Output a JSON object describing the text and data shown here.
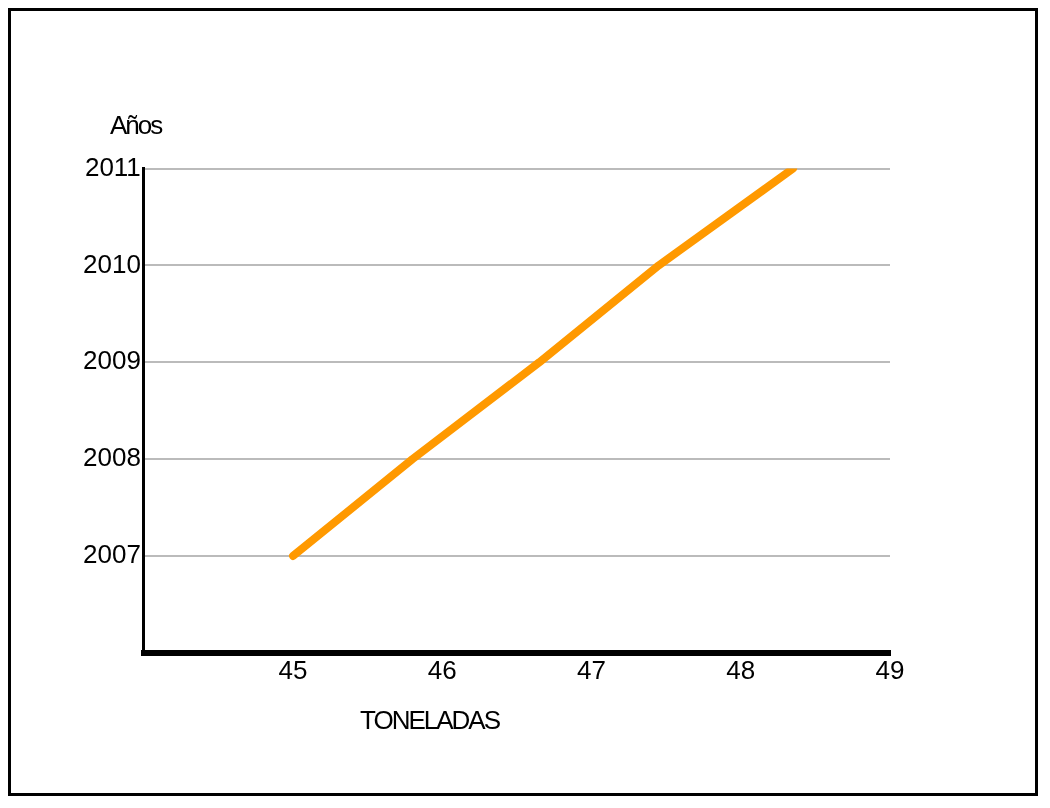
{
  "chart_data": {
    "type": "line",
    "xlabel": "TONELADAS",
    "ylabel": "Años",
    "x": [
      45.0,
      45.8,
      46.65,
      47.45,
      48.35
    ],
    "series": [
      {
        "color": "#ff9900",
        "values": [
          2007,
          2008,
          2009,
          2010,
          2011
        ]
      }
    ],
    "xlim": [
      44,
      49
    ],
    "xticks": [
      45,
      46,
      47,
      48,
      49
    ],
    "ylim": [
      2006,
      2011
    ],
    "yticks": [
      2007,
      2008,
      2009,
      2010,
      2011
    ],
    "grid": "y",
    "legend": false,
    "marker": "none",
    "line_style": "solid"
  }
}
